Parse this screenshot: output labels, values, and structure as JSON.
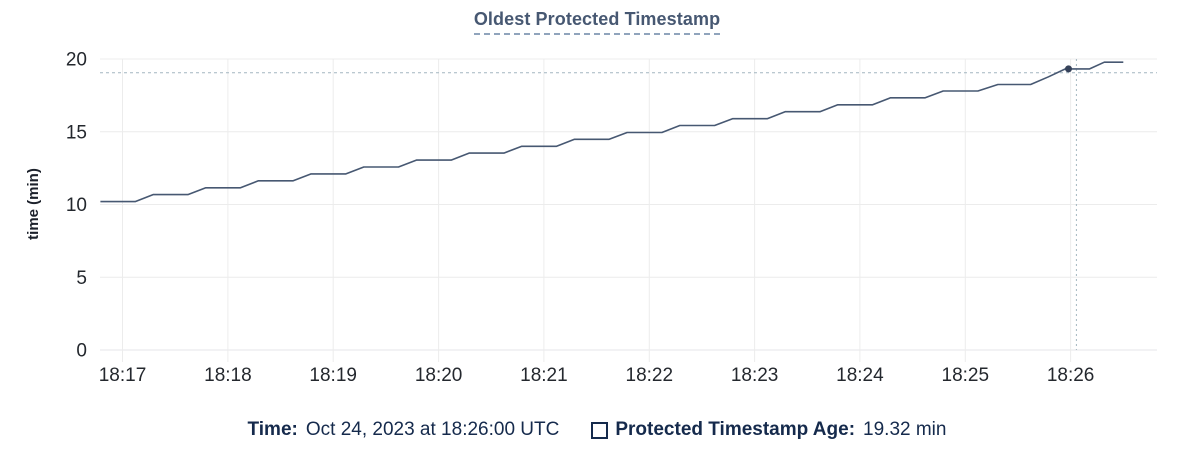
{
  "title": "Oldest Protected Timestamp",
  "colors": {
    "title": "#475872",
    "title_underline": "#90a4bc",
    "line": "#475872",
    "dot": "#36425a",
    "grid": "#ececec",
    "axis_line": "#e6e6e8",
    "crosshair": "#a3b6c0",
    "tick_text": "#24282e",
    "axis_title_text": "#1c212b",
    "legend_text": "#152a4c",
    "background": "#ffffff"
  },
  "chart_data": {
    "type": "line",
    "title": "Oldest Protected Timestamp",
    "xlabel": "",
    "ylabel": "time (min)",
    "ylim": [
      0,
      20
    ],
    "y_ticks": [
      0,
      5,
      10,
      15,
      20
    ],
    "x_domain_offsets": [
      -0.214,
      9.82
    ],
    "x_ticks": [
      {
        "offset": 0,
        "label": "18:17"
      },
      {
        "offset": 1,
        "label": "18:18"
      },
      {
        "offset": 2,
        "label": "18:19"
      },
      {
        "offset": 3,
        "label": "18:20"
      },
      {
        "offset": 4,
        "label": "18:21"
      },
      {
        "offset": 5,
        "label": "18:22"
      },
      {
        "offset": 6,
        "label": "18:23"
      },
      {
        "offset": 7,
        "label": "18:24"
      },
      {
        "offset": 8,
        "label": "18:25"
      },
      {
        "offset": 9,
        "label": "18:26"
      }
    ],
    "grid": true,
    "legend_position": "bottom",
    "series": [
      {
        "name": "Protected Timestamp Age",
        "unit": "min",
        "points": [
          [
            -0.21,
            10.2
          ],
          [
            0.12,
            10.2
          ],
          [
            0.29,
            10.68
          ],
          [
            0.62,
            10.68
          ],
          [
            0.79,
            11.15
          ],
          [
            1.12,
            11.15
          ],
          [
            1.29,
            11.63
          ],
          [
            1.62,
            11.63
          ],
          [
            1.79,
            12.1
          ],
          [
            2.12,
            12.1
          ],
          [
            2.29,
            12.58
          ],
          [
            2.62,
            12.58
          ],
          [
            2.79,
            13.05
          ],
          [
            3.12,
            13.05
          ],
          [
            3.29,
            13.53
          ],
          [
            3.62,
            13.53
          ],
          [
            3.79,
            14.0
          ],
          [
            4.12,
            14.0
          ],
          [
            4.29,
            14.48
          ],
          [
            4.62,
            14.48
          ],
          [
            4.79,
            14.95
          ],
          [
            5.12,
            14.95
          ],
          [
            5.29,
            15.43
          ],
          [
            5.62,
            15.43
          ],
          [
            5.79,
            15.9
          ],
          [
            6.12,
            15.9
          ],
          [
            6.29,
            16.38
          ],
          [
            6.62,
            16.38
          ],
          [
            6.79,
            16.85
          ],
          [
            7.12,
            16.85
          ],
          [
            7.29,
            17.33
          ],
          [
            7.62,
            17.33
          ],
          [
            7.79,
            17.8
          ],
          [
            8.12,
            17.8
          ],
          [
            8.31,
            18.25
          ],
          [
            8.62,
            18.25
          ],
          [
            8.79,
            18.78
          ],
          [
            8.95,
            19.32
          ],
          [
            9.18,
            19.32
          ],
          [
            9.32,
            19.78
          ],
          [
            9.5,
            19.78
          ]
        ]
      }
    ],
    "hover": {
      "dot_offset": 8.98,
      "dot_value": 19.32,
      "crosshair_x_offset": 9.055,
      "crosshair_y_value": 19.05
    }
  },
  "legend": {
    "time_label": "Time:",
    "time_value": "Oct 24, 2023 at 18:26:00 UTC",
    "series_label": "Protected Timestamp Age:",
    "series_value": "19.32 min"
  }
}
